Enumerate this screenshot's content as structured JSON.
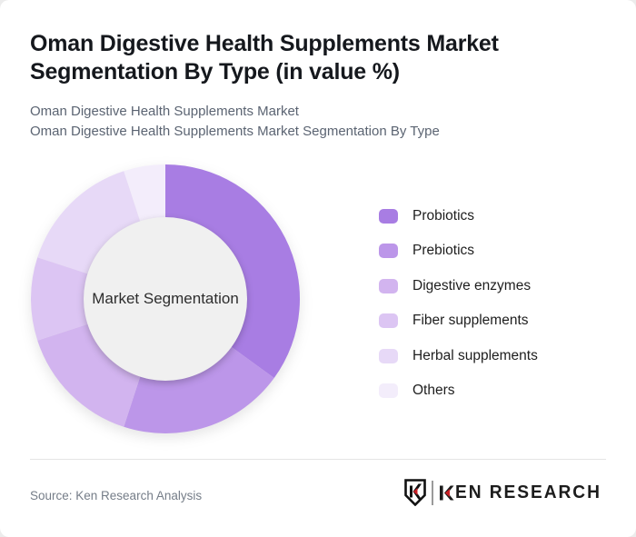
{
  "header": {
    "title": "Oman Digestive Health Supplements Market Segmentation By Type (in value %)",
    "subtitle_line1": "Oman Digestive Health Supplements Market",
    "subtitle_line2": "Oman Digestive Health Supplements Market Segmentation By Type"
  },
  "chart_data": {
    "type": "pie",
    "variant": "donut",
    "title": "Oman Digestive Health Supplements Market Segmentation By Type (in value %)",
    "center_label": "Market Segmentation",
    "categories": [
      "Probiotics",
      "Prebiotics",
      "Digestive enzymes",
      "Fiber supplements",
      "Herbal supplements",
      "Others"
    ],
    "values": [
      35,
      20,
      15,
      10,
      15,
      5
    ],
    "unit": "% of value",
    "colors": [
      "#a87de3",
      "#bc96e9",
      "#d2b4ef",
      "#dcc5f3",
      "#e7d9f7",
      "#f3edfb"
    ],
    "hole_color": "#f0f0f0",
    "start_angle_deg": 0,
    "direction": "clockwise",
    "legend_position": "right"
  },
  "footer": {
    "source": "Source: Ken Research Analysis",
    "logo_text": "KEN RESEARCH",
    "logo_text_after_k": "EN RESEARCH",
    "logo_red": "#cb2026",
    "logo_dark": "#1c1c1c"
  }
}
